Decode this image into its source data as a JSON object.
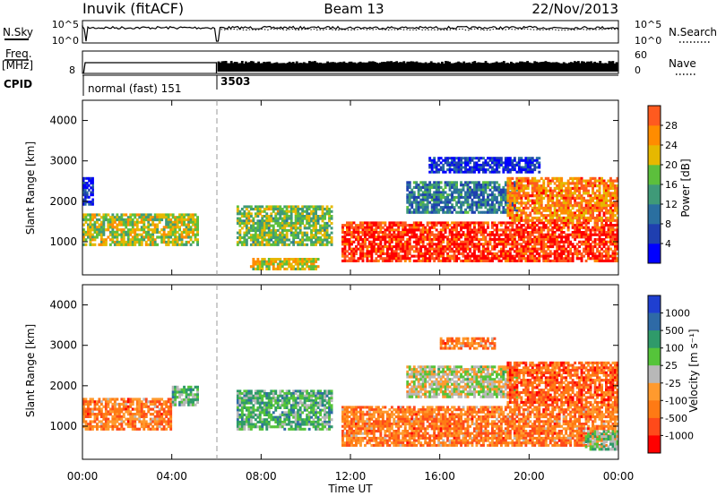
{
  "header": {
    "station": "Inuvik (fitACF)",
    "beam": "Beam 13",
    "date": "22/Nov/2013"
  },
  "sky_panel": {
    "left_label": "N.Sky",
    "left_ticks": [
      "10^5",
      "10^0"
    ],
    "right_label": "N.Search",
    "right_ticks": [
      "10^5",
      "10^0"
    ]
  },
  "freq_panel": {
    "left_label_1": "Freq.",
    "left_label_2": "[MHz]",
    "left_ticks": [
      "8"
    ],
    "right_label": "Nave",
    "right_ticks": [
      "60",
      "0"
    ]
  },
  "cpid": {
    "label": "CPID",
    "segments": [
      {
        "text": "normal (fast) 151",
        "start_hour": 0.0,
        "end_hour": 6.0
      },
      {
        "text": "3503",
        "start_hour": 6.0,
        "end_hour": 24.0
      }
    ]
  },
  "colors": {
    "power_scale": [
      "#0000ff",
      "#1f3fb0",
      "#2a6fa0",
      "#3f9a78",
      "#5cbf3c",
      "#e6b800",
      "#ff8c00",
      "#ff5a1f",
      "#ff0000"
    ],
    "velocity_scale": [
      "#1f3fd0",
      "#2e6aa6",
      "#2f9a6a",
      "#55c43a",
      "#b8b8b8",
      "#ff9a2e",
      "#ff7a14",
      "#ff4a1a",
      "#ff0000"
    ]
  },
  "chart_data": [
    {
      "type": "heatmap",
      "name": "power",
      "xlabel": "",
      "ylabel": "Slant Range [km]",
      "x_range_hours": [
        0,
        24
      ],
      "ylim": [
        180,
        4500
      ],
      "yticks": [
        1000,
        2000,
        3000,
        4000
      ],
      "colorbar_label": "Power [dB]",
      "colorbar_ticks": [
        "4",
        "8",
        "12",
        "16",
        "20",
        "24",
        "28"
      ],
      "colorbar_range": [
        0,
        32
      ],
      "regions": [
        {
          "hours": [
            0.0,
            5.2
          ],
          "range_km": [
            900,
            1700
          ],
          "level": 0.55
        },
        {
          "hours": [
            0.0,
            0.5
          ],
          "range_km": [
            1900,
            2600
          ],
          "level": 0.1
        },
        {
          "hours": [
            6.9,
            11.2
          ],
          "range_km": [
            900,
            1900
          ],
          "level": 0.5
        },
        {
          "hours": [
            7.5,
            10.6
          ],
          "range_km": [
            300,
            600
          ],
          "level": 0.6
        },
        {
          "hours": [
            11.6,
            24.0
          ],
          "range_km": [
            500,
            1500
          ],
          "level": 0.9
        },
        {
          "hours": [
            14.5,
            19.5
          ],
          "range_km": [
            1700,
            2500
          ],
          "level": 0.3
        },
        {
          "hours": [
            19.0,
            24.0
          ],
          "range_km": [
            1500,
            2600
          ],
          "level": 0.75
        },
        {
          "hours": [
            15.5,
            20.5
          ],
          "range_km": [
            2700,
            3100
          ],
          "level": 0.12
        }
      ]
    },
    {
      "type": "heatmap",
      "name": "velocity",
      "xlabel": "Time UT",
      "ylabel": "Slant Range [km]",
      "x_range_hours": [
        0,
        24
      ],
      "xticks": [
        "00:00",
        "04:00",
        "08:00",
        "12:00",
        "16:00",
        "20:00",
        "00:00"
      ],
      "ylim": [
        180,
        4500
      ],
      "yticks": [
        1000,
        2000,
        3000,
        4000
      ],
      "colorbar_label": "Velocity [m s⁻¹]",
      "colorbar_ticks": [
        "1000",
        "500",
        "100",
        "25",
        "-25",
        "-100",
        "-500",
        "-1000"
      ],
      "regions": [
        {
          "hours": [
            0.0,
            4.0
          ],
          "range_km": [
            900,
            1700
          ],
          "level": 0.72
        },
        {
          "hours": [
            4.0,
            5.2
          ],
          "range_km": [
            1500,
            2000
          ],
          "level": 0.38
        },
        {
          "hours": [
            6.9,
            11.2
          ],
          "range_km": [
            900,
            1900
          ],
          "level": 0.35
        },
        {
          "hours": [
            11.6,
            24.0
          ],
          "range_km": [
            500,
            1500
          ],
          "level": 0.72
        },
        {
          "hours": [
            14.5,
            19.5
          ],
          "range_km": [
            1700,
            2500
          ],
          "level": 0.5
        },
        {
          "hours": [
            19.0,
            24.0
          ],
          "range_km": [
            1500,
            2600
          ],
          "level": 0.78
        },
        {
          "hours": [
            22.5,
            24.0
          ],
          "range_km": [
            400,
            900
          ],
          "level": 0.4
        },
        {
          "hours": [
            16.0,
            18.5
          ],
          "range_km": [
            2900,
            3200
          ],
          "level": 0.72
        }
      ]
    }
  ]
}
